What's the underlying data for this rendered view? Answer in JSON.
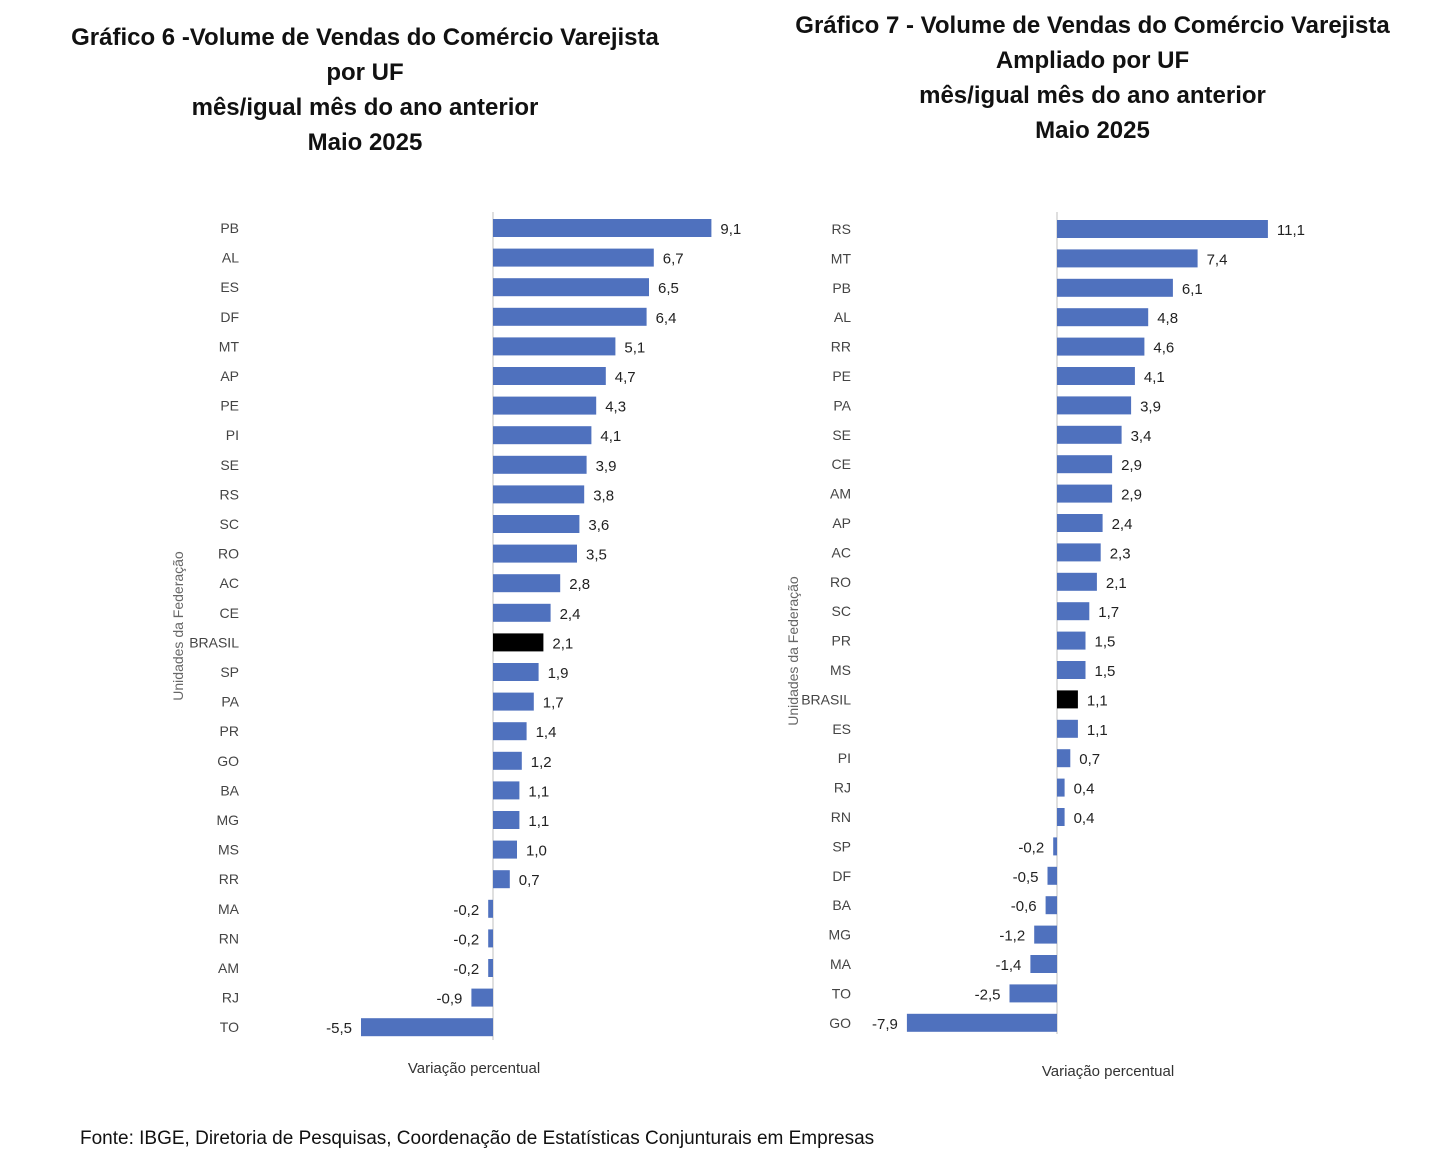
{
  "chart_data": [
    {
      "type": "bar",
      "orientation": "horizontal",
      "title": [
        "Gráfico 6 -Volume de Vendas do Comércio Varejista",
        "por UF",
        "mês/igual mês do ano anterior",
        "Maio 2025"
      ],
      "xlabel": "Variação percentual",
      "ylabel": "Unidades da Federação",
      "xlim": [
        -5.5,
        9.1
      ],
      "grid": false,
      "legend": "none",
      "bar_color": "#4F71BE",
      "highlight_color": "#000000",
      "highlight_category": "BRASIL",
      "categories": [
        "PB",
        "AL",
        "ES",
        "DF",
        "MT",
        "AP",
        "PE",
        "PI",
        "SE",
        "RS",
        "SC",
        "RO",
        "AC",
        "CE",
        "BRASIL",
        "SP",
        "PA",
        "PR",
        "GO",
        "BA",
        "MG",
        "MS",
        "RR",
        "MA",
        "RN",
        "AM",
        "RJ",
        "TO"
      ],
      "values": [
        9.1,
        6.7,
        6.5,
        6.4,
        5.1,
        4.7,
        4.3,
        4.1,
        3.9,
        3.8,
        3.6,
        3.5,
        2.8,
        2.4,
        2.1,
        1.9,
        1.7,
        1.4,
        1.2,
        1.1,
        1.1,
        1.0,
        0.7,
        -0.2,
        -0.2,
        -0.2,
        -0.9,
        -5.5
      ],
      "value_labels": [
        "9,1",
        "6,7",
        "6,5",
        "6,4",
        "5,1",
        "4,7",
        "4,3",
        "4,1",
        "3,9",
        "3,8",
        "3,6",
        "3,5",
        "2,8",
        "2,4",
        "2,1",
        "1,9",
        "1,7",
        "1,4",
        "1,2",
        "1,1",
        "1,1",
        "1,0",
        "0,7",
        "-0,2",
        "-0,2",
        "-0,2",
        "-0,9",
        "-5,5"
      ]
    },
    {
      "type": "bar",
      "orientation": "horizontal",
      "title": [
        "Gráfico 7 - Volume de Vendas do Comércio Varejista",
        "Ampliado por UF",
        "mês/igual mês do ano anterior",
        "Maio 2025"
      ],
      "xlabel": "Variação percentual",
      "ylabel": "Unidades da Federação",
      "xlim": [
        -7.9,
        11.1
      ],
      "grid": false,
      "legend": "none",
      "bar_color": "#4F71BE",
      "highlight_color": "#000000",
      "highlight_category": "BRASIL",
      "categories": [
        "RS",
        "MT",
        "PB",
        "AL",
        "RR",
        "PE",
        "PA",
        "SE",
        "CE",
        "AM",
        "AP",
        "AC",
        "RO",
        "SC",
        "PR",
        "MS",
        "BRASIL",
        "ES",
        "PI",
        "RJ",
        "RN",
        "SP",
        "DF",
        "BA",
        "MG",
        "MA",
        "TO",
        "GO"
      ],
      "values": [
        11.1,
        7.4,
        6.1,
        4.8,
        4.6,
        4.1,
        3.9,
        3.4,
        2.9,
        2.9,
        2.4,
        2.3,
        2.1,
        1.7,
        1.5,
        1.5,
        1.1,
        1.1,
        0.7,
        0.4,
        0.4,
        -0.2,
        -0.5,
        -0.6,
        -1.2,
        -1.4,
        -2.5,
        -7.9
      ],
      "value_labels": [
        "11,1",
        "7,4",
        "6,1",
        "4,8",
        "4,6",
        "4,1",
        "3,9",
        "3,4",
        "2,9",
        "2,9",
        "2,4",
        "2,3",
        "2,1",
        "1,7",
        "1,5",
        "1,5",
        "1,1",
        "1,1",
        "0,7",
        "0,4",
        "0,4",
        "-0,2",
        "-0,5",
        "-0,6",
        "-1,2",
        "-1,4",
        "-2,5",
        "-7,9"
      ]
    }
  ],
  "footer": {
    "source": "Fonte: IBGE, Diretoria de Pesquisas, Coordenação de Estatísticas Conjunturais em Empresas"
  }
}
